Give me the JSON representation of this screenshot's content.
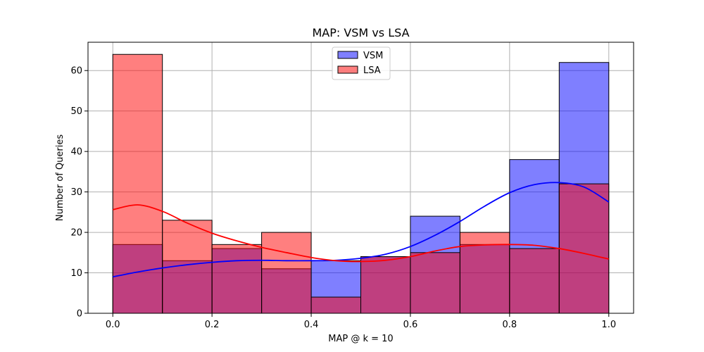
{
  "chart_data": {
    "type": "histogram",
    "title": "MAP: VSM vs LSA",
    "xlabel": "MAP @ k = 10",
    "ylabel": "Number of Queries",
    "xlim": [
      -0.05,
      1.05
    ],
    "ylim": [
      0,
      67
    ],
    "xticks": [
      0.0,
      0.2,
      0.4,
      0.6,
      0.8,
      1.0
    ],
    "xtick_labels": [
      "0.0",
      "0.2",
      "0.4",
      "0.6",
      "0.8",
      "1.0"
    ],
    "yticks": [
      0,
      10,
      20,
      30,
      40,
      50,
      60
    ],
    "ytick_labels": [
      "0",
      "10",
      "20",
      "30",
      "40",
      "50",
      "60"
    ],
    "grid": true,
    "legend_position": "top-center",
    "bin_edges": [
      0.0,
      0.1,
      0.2,
      0.3,
      0.4,
      0.5,
      0.6,
      0.7,
      0.8,
      0.9,
      1.0
    ],
    "series": [
      {
        "name": "VSM",
        "color": "#0000ff",
        "values": [
          17,
          13,
          16,
          11,
          13,
          14,
          24,
          17,
          38,
          62
        ],
        "kde": {
          "x": [
            0.0,
            0.05,
            0.1,
            0.15,
            0.2,
            0.25,
            0.3,
            0.35,
            0.4,
            0.45,
            0.5,
            0.55,
            0.6,
            0.65,
            0.7,
            0.75,
            0.8,
            0.85,
            0.9,
            0.95,
            1.0
          ],
          "y": [
            9.0,
            10.2,
            11.2,
            12.0,
            12.6,
            13.0,
            13.1,
            13.0,
            13.0,
            13.1,
            13.6,
            14.6,
            16.5,
            19.3,
            22.7,
            26.5,
            29.8,
            31.8,
            32.3,
            31.2,
            27.5
          ]
        }
      },
      {
        "name": "LSA",
        "color": "#ff0000",
        "values": [
          64,
          23,
          17,
          20,
          4,
          14,
          15,
          20,
          16,
          32
        ],
        "kde": {
          "x": [
            0.0,
            0.05,
            0.1,
            0.15,
            0.2,
            0.25,
            0.3,
            0.35,
            0.4,
            0.45,
            0.5,
            0.55,
            0.6,
            0.65,
            0.7,
            0.75,
            0.8,
            0.85,
            0.9,
            0.95,
            1.0
          ],
          "y": [
            25.6,
            26.8,
            25.2,
            22.3,
            19.8,
            17.9,
            16.3,
            15.0,
            13.8,
            13.0,
            12.8,
            13.1,
            14.0,
            15.4,
            16.5,
            16.9,
            17.0,
            16.8,
            16.0,
            14.8,
            13.4
          ]
        }
      }
    ]
  }
}
